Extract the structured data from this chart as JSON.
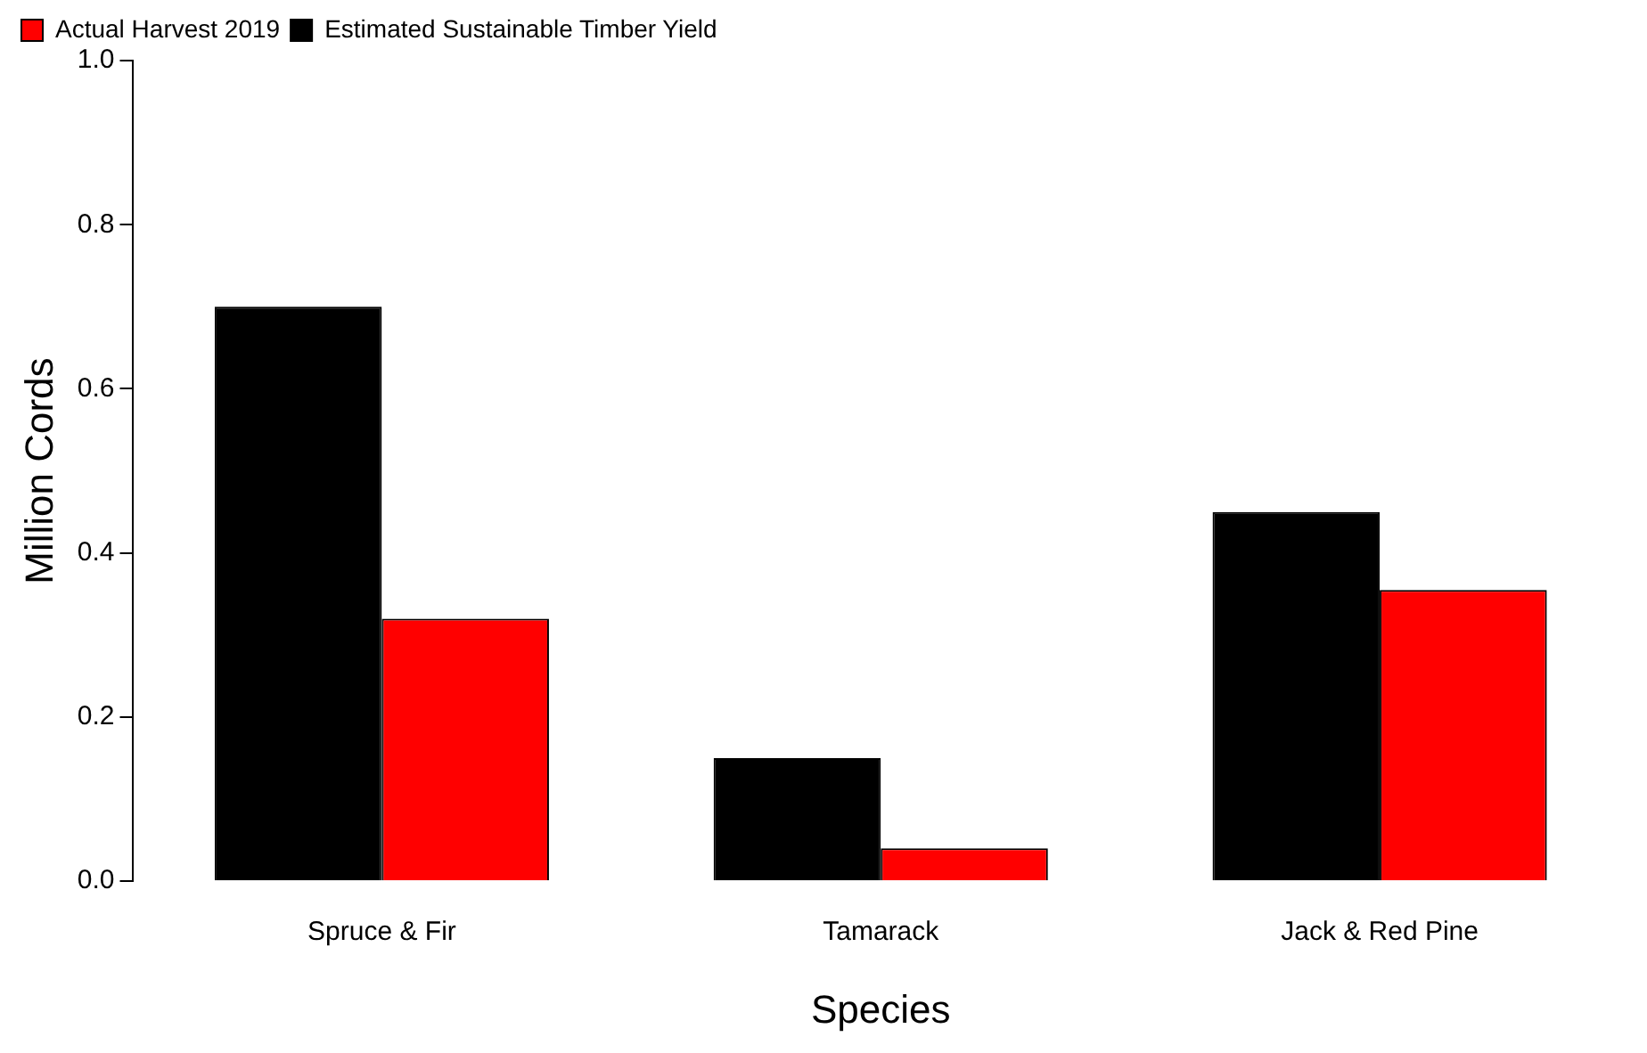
{
  "chart_data": {
    "type": "bar",
    "xlabel": "Species",
    "ylabel": "Million Cords",
    "categories": [
      "Spruce & Fir",
      "Tamarack",
      "Jack & Red Pine"
    ],
    "series": [
      {
        "name": "Estimated Sustainable Timber Yield",
        "color": "#000000",
        "values": [
          0.7,
          0.15,
          0.45
        ]
      },
      {
        "name": "Actual Harvest 2019",
        "color": "#ff0000",
        "values": [
          0.32,
          0.04,
          0.355
        ]
      }
    ],
    "ylim": [
      0,
      1
    ],
    "yticks": [
      {
        "value": 0,
        "label": "0.0"
      },
      0.2,
      0.4,
      0.6,
      0.8,
      {
        "value": 1,
        "label": "1.0"
      }
    ],
    "legend": "top left"
  }
}
